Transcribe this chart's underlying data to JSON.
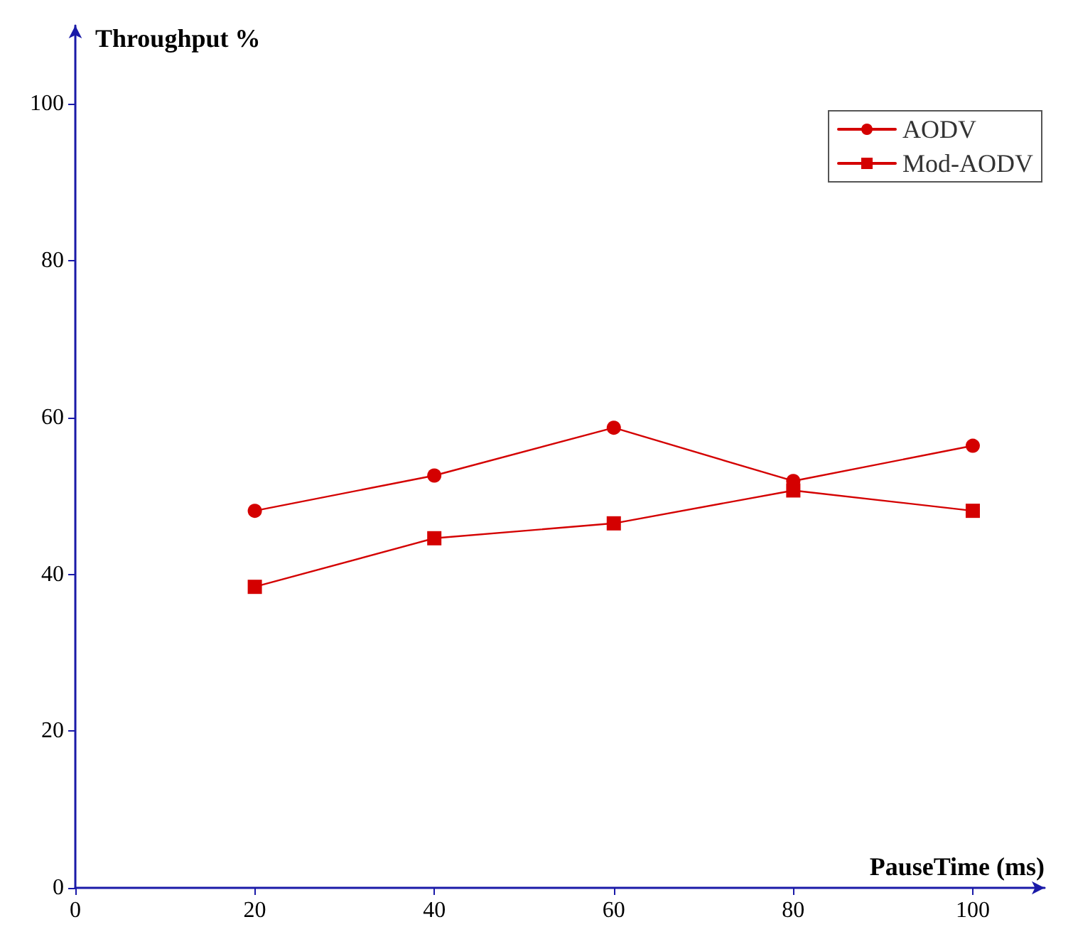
{
  "chart_data": {
    "type": "line",
    "xlabel": "PauseTime (ms)",
    "ylabel": "Throughput %",
    "x": [
      20,
      40,
      60,
      80,
      100
    ],
    "series": [
      {
        "name": "AODV",
        "color": "#d40000",
        "marker": "circle",
        "values": [
          48.1,
          52.6,
          58.7,
          51.9,
          56.4
        ]
      },
      {
        "name": "Mod-AODV",
        "color": "#d40000",
        "marker": "square",
        "values": [
          38.4,
          44.6,
          46.5,
          50.7,
          48.1
        ]
      }
    ],
    "xlim": [
      0,
      108
    ],
    "xticks": [
      0,
      20,
      40,
      60,
      80,
      100
    ],
    "ylim": [
      0,
      110
    ],
    "yticks": [
      0,
      20,
      40,
      60,
      80,
      100
    ],
    "grid": false,
    "legend": "top right",
    "line_style": "solid"
  }
}
